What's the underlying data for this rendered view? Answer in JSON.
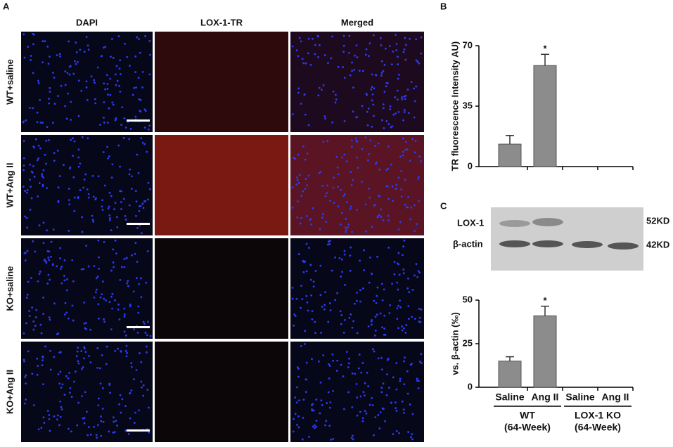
{
  "figure_a": {
    "label": "A",
    "columns": [
      "DAPI",
      "LOX-1-TR",
      "Merged"
    ],
    "rows": [
      "WT+saline",
      "WT+Ang II",
      "KO+saline",
      "KO+Ang II"
    ]
  },
  "figure_b": {
    "label": "B"
  },
  "figure_c": {
    "label": "C",
    "blot": {
      "bands": [
        "LOX-1",
        "β-actin"
      ],
      "sizes": [
        "52KD",
        "42KD"
      ]
    }
  },
  "chart_data": [
    {
      "type": "bar",
      "y_label": "TR fluorescence Intensity AU)",
      "categories": [
        null,
        null,
        null,
        null
      ],
      "values": [
        13,
        58.5,
        0,
        0
      ],
      "errors": [
        5,
        6.5,
        0,
        0
      ],
      "color": "#8c8c8c",
      "annotations": [
        {
          "text": "*",
          "index": 1
        }
      ],
      "ylim": [
        0,
        70
      ],
      "yticks": [
        0,
        35,
        70
      ]
    },
    {
      "type": "bar",
      "y_label": "vs. β-actin (‰)",
      "categories": [
        "Saline",
        "Ang II",
        "Saline",
        "Ang II"
      ],
      "groups": [
        {
          "lines": [
            "WT",
            "(64-Week)"
          ],
          "span": [
            0,
            1
          ]
        },
        {
          "lines": [
            "LOX-1 KO",
            "(64-Week)"
          ],
          "span": [
            2,
            3
          ]
        }
      ],
      "values": [
        15,
        41,
        0,
        0
      ],
      "errors": [
        2.5,
        5.5,
        0,
        0
      ],
      "color": "#8c8c8c",
      "annotations": [
        {
          "text": "*",
          "index": 1
        }
      ],
      "ylim": [
        0,
        50
      ],
      "yticks": [
        0,
        25,
        50
      ]
    }
  ]
}
